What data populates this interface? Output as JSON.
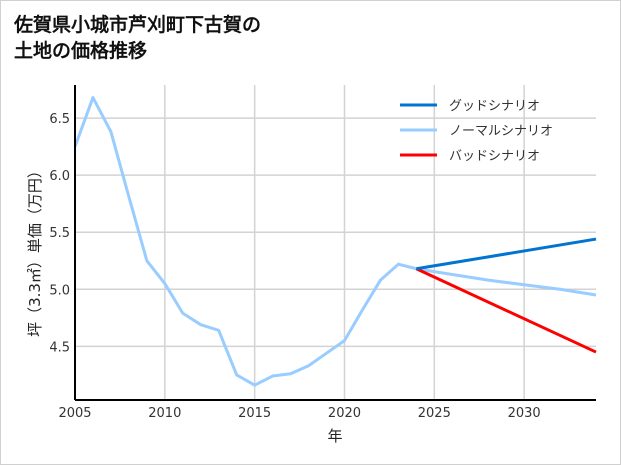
{
  "chart_data": {
    "type": "line",
    "title_lines": [
      "佐賀県小城市芦刈町下古賀の",
      "土地の価格推移"
    ],
    "xlabel": "年",
    "ylabel": "坪（3.3㎡）単価（万円）",
    "xlim": [
      2005,
      2034
    ],
    "ylim": [
      4.03,
      6.79
    ],
    "xticks": [
      2005,
      2010,
      2015,
      2020,
      2025,
      2030
    ],
    "yticks": [
      4.5,
      5.0,
      5.5,
      6.0,
      6.5
    ],
    "xtick_labels": [
      "2005",
      "2010",
      "2015",
      "2020",
      "2025",
      "2030"
    ],
    "ytick_labels": [
      "4.5",
      "5.0",
      "5.5",
      "6.0",
      "6.5"
    ],
    "grid": true,
    "legend_position": "top-right",
    "series": [
      {
        "name": "グッドシナリオ",
        "color": "#0074d0",
        "x": [
          2024,
          2034
        ],
        "y": [
          5.18,
          5.44
        ]
      },
      {
        "name": "ノーマルシナリオ",
        "color": "#99ccff",
        "x": [
          2005,
          2006,
          2007,
          2008,
          2009,
          2010,
          2011,
          2012,
          2013,
          2014,
          2015,
          2016,
          2017,
          2018,
          2019,
          2020,
          2021,
          2022,
          2023,
          2024,
          2026,
          2028,
          2030,
          2032,
          2034
        ],
        "y": [
          6.25,
          6.68,
          6.38,
          5.81,
          5.25,
          5.05,
          4.79,
          4.69,
          4.64,
          4.25,
          4.16,
          4.24,
          4.26,
          4.33,
          4.44,
          4.55,
          4.82,
          5.08,
          5.22,
          5.18,
          5.13,
          5.08,
          5.04,
          5.0,
          4.95
        ]
      },
      {
        "name": "バッドシナリオ",
        "color": "#ff0000",
        "x": [
          2024,
          2034
        ],
        "y": [
          5.18,
          4.45
        ]
      }
    ]
  }
}
